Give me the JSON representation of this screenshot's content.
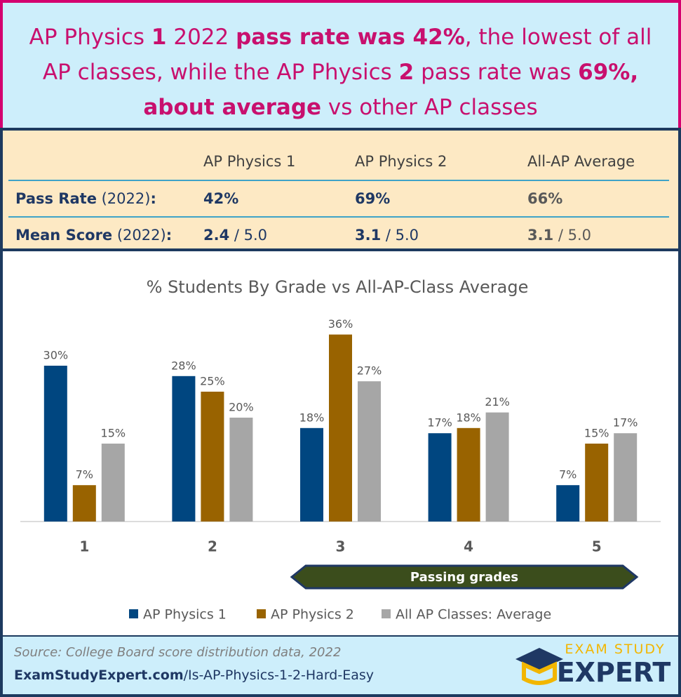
{
  "header": {
    "title": [
      {
        "text": "AP Physics ",
        "bold": false
      },
      {
        "text": "1",
        "bold": true
      },
      {
        "text": " 2022 ",
        "bold": false
      },
      {
        "text": "pass rate was 42%",
        "bold": true
      },
      {
        "text": ", the lowest of all AP classes, while the AP Physics ",
        "bold": false
      },
      {
        "text": "2",
        "bold": true
      },
      {
        "text": " pass rate was ",
        "bold": false
      },
      {
        "text": "69%, about average",
        "bold": true
      },
      {
        "text": " vs other AP classes",
        "bold": false
      }
    ]
  },
  "table": {
    "columns": [
      "AP Physics 1",
      "AP Physics 2",
      "All-AP Average"
    ],
    "rows": [
      {
        "label": [
          {
            "text": "Pass Rate",
            "bold": true
          },
          {
            "text": " (2022)",
            "bold": false
          },
          {
            "text": ":",
            "bold": true
          }
        ],
        "cells": [
          [
            {
              "text": "42%",
              "bold": true
            }
          ],
          [
            {
              "text": "69%",
              "bold": true
            }
          ],
          [
            {
              "text": "66%",
              "bold": true
            }
          ]
        ]
      },
      {
        "label": [
          {
            "text": "Mean Score",
            "bold": true
          },
          {
            "text": " (2022)",
            "bold": false
          },
          {
            "text": ":",
            "bold": true
          }
        ],
        "cells": [
          [
            {
              "text": "2.4",
              "bold": true
            },
            {
              "text": " / 5.0",
              "bold": false
            }
          ],
          [
            {
              "text": "3.1",
              "bold": true
            },
            {
              "text": " / 5.0",
              "bold": false
            }
          ],
          [
            {
              "text": "3.1",
              "bold": true
            },
            {
              "text": " / 5.0",
              "bold": false
            }
          ]
        ]
      }
    ]
  },
  "chart_data": {
    "type": "bar",
    "title": "% Students By Grade vs All-AP-Class Average",
    "categories": [
      "1",
      "2",
      "3",
      "4",
      "5"
    ],
    "ylim": [
      0,
      40
    ],
    "series": [
      {
        "name": "AP Physics 1",
        "color": "#004680",
        "values": [
          30,
          28,
          18,
          17,
          7
        ],
        "value_labels": [
          "30%",
          "28%",
          "18%",
          "17%",
          "7%"
        ]
      },
      {
        "name": "AP Physics 2",
        "color": "#996300",
        "values": [
          7,
          25,
          36,
          18,
          15
        ],
        "value_labels": [
          "7%",
          "25%",
          "36%",
          "18%",
          "15%"
        ]
      },
      {
        "name": "All AP Classes: Average",
        "color": "#a6a6a6",
        "values": [
          15,
          20,
          27,
          21,
          17
        ],
        "value_labels": [
          "15%",
          "20%",
          "27%",
          "21%",
          "17%"
        ]
      }
    ],
    "annotation": "Passing grades",
    "legend": "bottom"
  },
  "footer": {
    "source": "Source: College Board score distribution data, 2022",
    "link": [
      {
        "text": "ExamStudyExpert.com",
        "bold": true
      },
      {
        "text": "/Is-AP-Physics-1-2-Hard-Easy",
        "bold": false
      }
    ],
    "logo_top": "EXAM STUDY",
    "logo_bottom": "EXPERT"
  }
}
